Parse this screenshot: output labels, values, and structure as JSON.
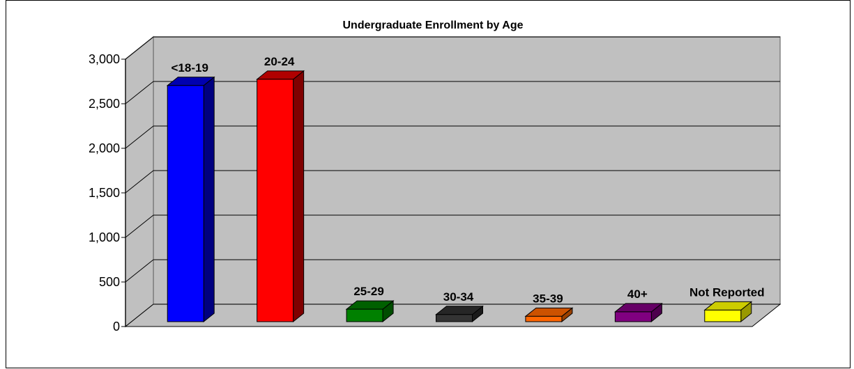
{
  "chart_data": {
    "type": "bar",
    "title": "Undergraduate Enrollment by Age",
    "xlabel": "",
    "ylabel": "",
    "ylim": [
      0,
      3000
    ],
    "yticks": [
      "0",
      "500",
      "1,000",
      "1,500",
      "2,000",
      "2,500",
      "3,000"
    ],
    "ytick_values": [
      0,
      500,
      1000,
      1500,
      2000,
      2500,
      3000
    ],
    "categories": [
      "<18-19",
      "20-24",
      "25-29",
      "30-34",
      "35-39",
      "40+",
      "Not Reported"
    ],
    "values": [
      2650,
      2720,
      140,
      80,
      60,
      110,
      130
    ],
    "colors": [
      "#0000ff",
      "#ff0000",
      "#008000",
      "#333333",
      "#ff6600",
      "#800080",
      "#ffff00"
    ],
    "side_colors": [
      "#000080",
      "#800000",
      "#004d00",
      "#1a1a1a",
      "#994000",
      "#4d004d",
      "#999900"
    ],
    "top_colors": [
      "#0000b0",
      "#b00000",
      "#006000",
      "#262626",
      "#cc5200",
      "#660066",
      "#cccc00"
    ],
    "grid": true,
    "legend": "none",
    "plot_wall_color": "#c0c0c0"
  }
}
